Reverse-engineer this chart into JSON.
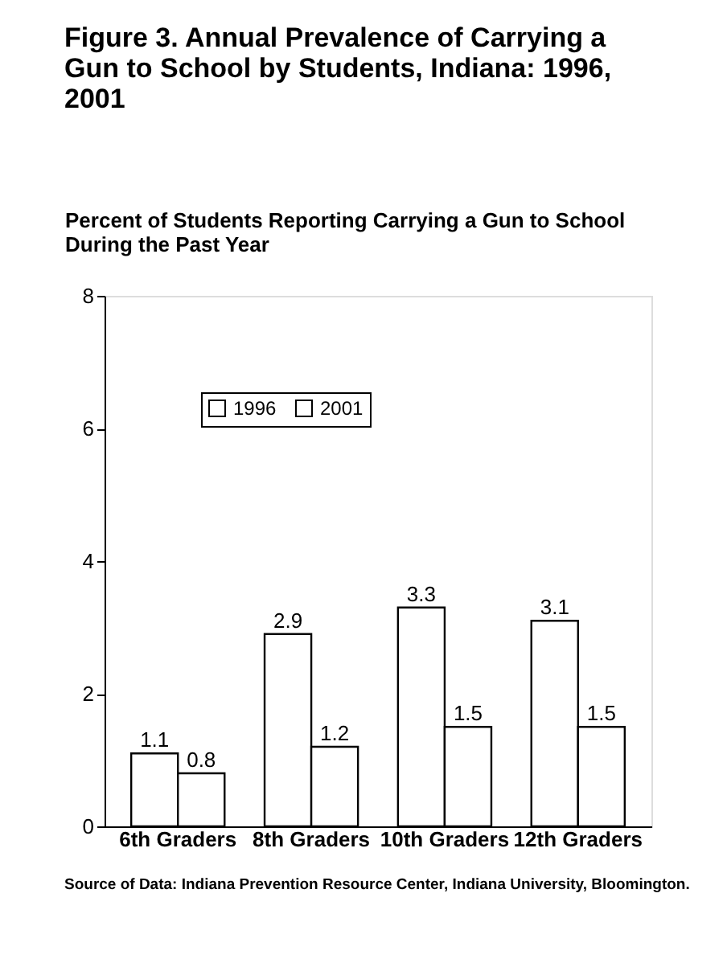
{
  "chart_data": {
    "type": "bar",
    "title": "Figure 3. Annual Prevalence of Carrying a Gun to School by Students, Indiana: 1996, 2001",
    "ylabel": "Percent of Students Reporting Carrying a Gun to School During the Past Year",
    "categories": [
      "6th Graders",
      "8th Graders",
      "10th Graders",
      "12th Graders"
    ],
    "series": [
      {
        "name": "1996",
        "color": "#ffffff",
        "values": [
          1.1,
          2.9,
          3.3,
          3.1
        ]
      },
      {
        "name": "2001",
        "color": "#ffffff",
        "values": [
          0.8,
          1.2,
          1.5,
          1.5
        ]
      }
    ],
    "ylim": [
      0,
      8
    ],
    "yticks": [
      0,
      2,
      4,
      6,
      8
    ],
    "grid": false,
    "legend": "top left",
    "data_labels": true,
    "annotations": [
      "Source of Data: Indiana Prevention Resource Center, Indiana University, Bloomington."
    ]
  }
}
